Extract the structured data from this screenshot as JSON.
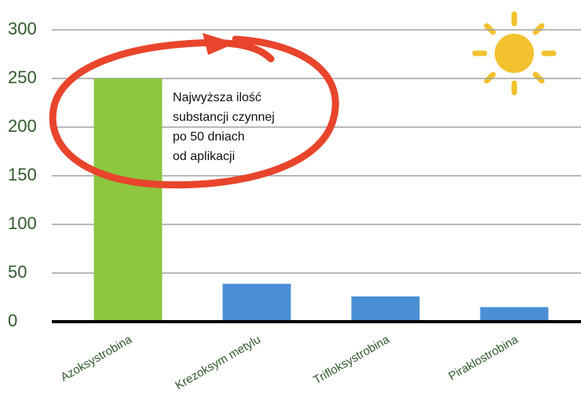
{
  "chart_data": {
    "type": "bar",
    "categories": [
      "Azoksystrobina",
      "Krezoksym metylu",
      "Trifloksystrobina",
      "Piraklostrobina"
    ],
    "values": [
      250,
      39,
      26,
      15
    ],
    "colors": [
      "#8dc63f",
      "#4a8fd4",
      "#4a8fd4",
      "#4a8fd4"
    ],
    "ylim": [
      0,
      300
    ],
    "yticks": [
      0,
      50,
      100,
      150,
      200,
      250,
      300
    ],
    "grid": true,
    "annotation": [
      "Najwyższa ilość",
      "substancji czynnej",
      "po 50 dniach",
      "od aplikacji"
    ]
  }
}
